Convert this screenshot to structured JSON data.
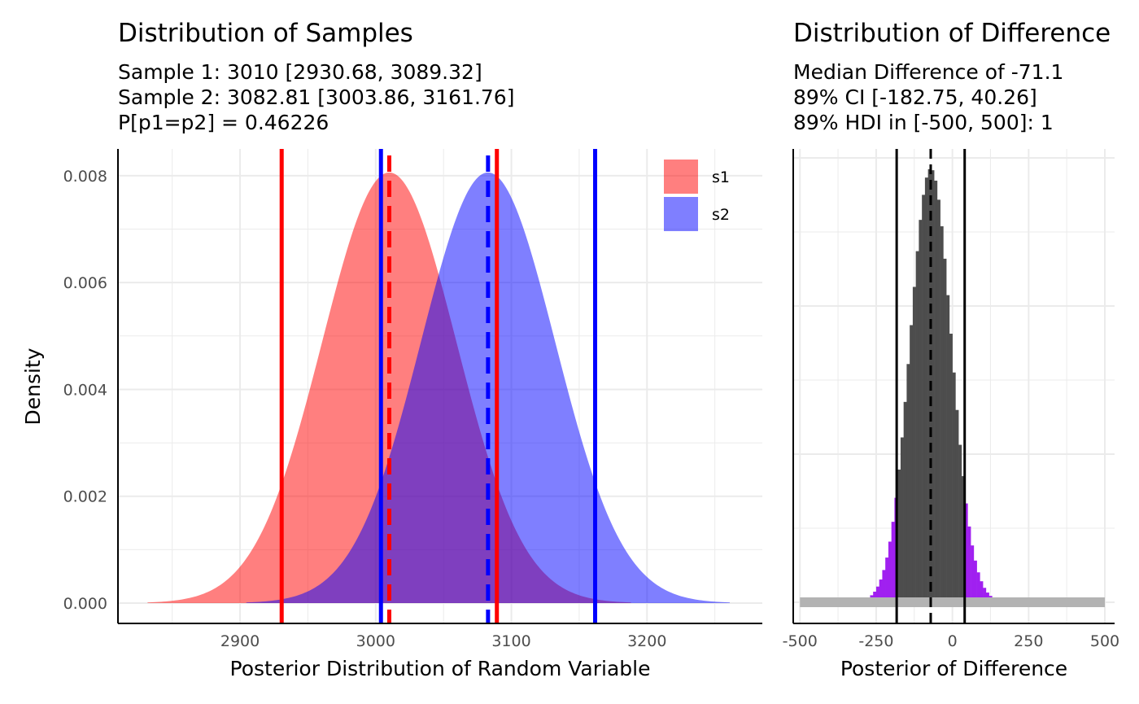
{
  "chart_data": [
    {
      "type": "area",
      "title": "Distribution of Samples",
      "subtitle_lines": [
        "Sample 1:  3010 [2930.68, 3089.32]",
        "Sample 2:  3082.81 [3003.86, 3161.76]",
        "P[p1=p2] = 0.46226"
      ],
      "xlabel": "Posterior Distribution of Random Variable",
      "ylabel": "Density",
      "xlim": [
        2810,
        3285
      ],
      "ylim": [
        -0.00038,
        0.0085
      ],
      "x_ticks": [
        2900,
        3000,
        3100,
        3200
      ],
      "x_tick_labels": [
        "2900",
        "3000",
        "3100",
        "3200"
      ],
      "y_ticks": [
        0.0,
        0.002,
        0.004,
        0.006,
        0.008
      ],
      "y_tick_labels": [
        "0.000",
        "0.002",
        "0.004",
        "0.006",
        "0.008"
      ],
      "grid": true,
      "legend_position": "top-right",
      "series": [
        {
          "name": "s1",
          "color": "#FF0000",
          "fill_opacity": 0.5,
          "mean": 3010,
          "sd": 49.5,
          "peak_density": 0.00806
        },
        {
          "name": "s2",
          "color": "#0000FF",
          "fill_opacity": 0.5,
          "mean": 3082.81,
          "sd": 49.5,
          "peak_density": 0.00806
        }
      ],
      "vlines": [
        {
          "x": 2930.68,
          "color": "#FF0000",
          "style": "solid"
        },
        {
          "x": 3089.32,
          "color": "#FF0000",
          "style": "solid"
        },
        {
          "x": 3010,
          "color": "#FF0000",
          "style": "dashed"
        },
        {
          "x": 3003.86,
          "color": "#0000FF",
          "style": "solid"
        },
        {
          "x": 3161.76,
          "color": "#0000FF",
          "style": "solid"
        },
        {
          "x": 3082.81,
          "color": "#0000FF",
          "style": "dashed"
        }
      ]
    },
    {
      "type": "bar",
      "title": "Distribution of Difference",
      "subtitle_lines": [
        "Median Difference of -71.1",
        "89% CI [-182.75, 40.26]",
        "89% HDI in [-500, 500]: 1"
      ],
      "xlabel": "Posterior of Difference",
      "xlim": [
        -522,
        532
      ],
      "x_ticks": [
        -500,
        -250,
        0,
        250,
        500
      ],
      "x_tick_labels": [
        "-500",
        "-250",
        "0",
        "250",
        "500"
      ],
      "grid": true,
      "histogram": {
        "mean": -71.1,
        "sd": 67.5,
        "binwidth": 10,
        "peak_count": 1,
        "range": [
          -280,
          150
        ],
        "inside_color": "#4D4D4D",
        "outside_color": "#A020F0"
      },
      "rope": {
        "from": -500,
        "to": 500,
        "color": "#B3B3B3"
      },
      "vlines": [
        {
          "x": -182.75,
          "color": "#000000",
          "style": "solid"
        },
        {
          "x": 40.26,
          "color": "#000000",
          "style": "solid"
        },
        {
          "x": -71.1,
          "color": "#000000",
          "style": "dashed"
        }
      ]
    }
  ]
}
